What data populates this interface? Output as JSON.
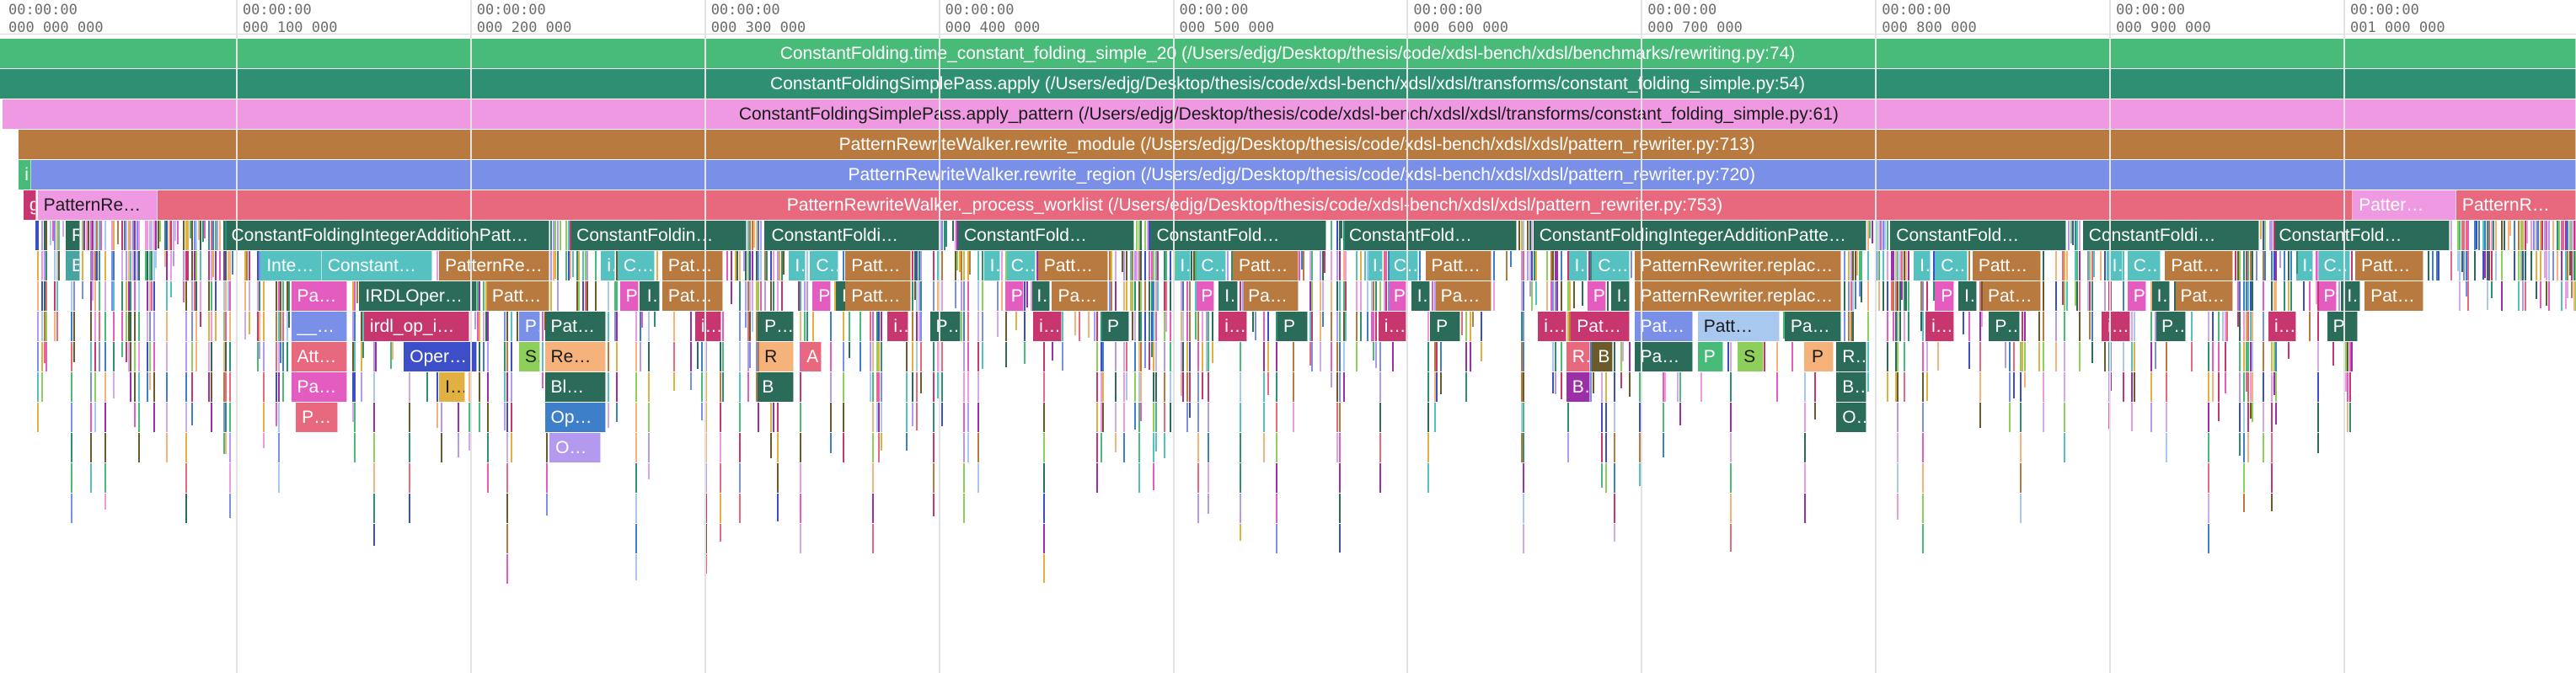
{
  "timeline": {
    "ticks": [
      {
        "time": "00:00:00",
        "count": "000 000 000"
      },
      {
        "time": "00:00:00",
        "count": "000 100 000"
      },
      {
        "time": "00:00:00",
        "count": "000 200 000"
      },
      {
        "time": "00:00:00",
        "count": "000 300 000"
      },
      {
        "time": "00:00:00",
        "count": "000 400 000"
      },
      {
        "time": "00:00:00",
        "count": "000 500 000"
      },
      {
        "time": "00:00:00",
        "count": "000 600 000"
      },
      {
        "time": "00:00:00",
        "count": "000 700 000"
      },
      {
        "time": "00:00:00",
        "count": "000 800 000"
      },
      {
        "time": "00:00:00",
        "count": "000 900 000"
      },
      {
        "time": "00:00:00",
        "count": "001 000 000"
      }
    ]
  },
  "frames": [
    {
      "row": 0,
      "start": 0,
      "end": 1097,
      "label": "ConstantFolding.time_constant_folding_simple_20 (/Users/edjg/Desktop/thesis/code/xdsl-bench/xdsl/benchmarks/rewriting.py:74)",
      "color": "#48bb78",
      "centered": true
    },
    {
      "row": 1,
      "start": 0,
      "end": 1097,
      "label": "ConstantFoldingSimplePass.apply (/Users/edjg/Desktop/thesis/code/xdsl-bench/xdsl/xdsl/transforms/constant_folding_simple.py:54)",
      "color": "#2f8f72",
      "centered": true
    },
    {
      "row": 2,
      "start": 1,
      "end": 1097,
      "label": "ConstantFoldingSimplePass.apply_pattern (/Users/edjg/Desktop/thesis/code/xdsl-bench/xdsl/xdsl/transforms/constant_folding_simple.py:61)",
      "color": "#ee99e1",
      "centered": true,
      "dark": true
    },
    {
      "row": 3,
      "start": 8,
      "end": 1097,
      "label": "PatternRewriteWalker.rewrite_module (/Users/edjg/Desktop/thesis/code/xdsl-bench/xdsl/xdsl/pattern_rewriter.py:713)",
      "color": "#b87a3e",
      "centered": true
    },
    {
      "row": 4,
      "start": 12,
      "end": 1097,
      "label": "PatternRewriteWalker.rewrite_region (/Users/edjg/Desktop/thesis/code/xdsl-bench/xdsl/xdsl/pattern_rewriter.py:720)",
      "color": "#7a8fe8",
      "centered": true
    },
    {
      "row": 4,
      "start": 8,
      "end": 12,
      "label": "i",
      "color": "#48bb78"
    },
    {
      "row": 5,
      "start": 10,
      "end": 14,
      "label": "g",
      "color": "#c7366f"
    },
    {
      "row": 5,
      "start": 16,
      "end": 67,
      "label": "PatternRewr…",
      "color": "#ee99e1",
      "dark": true
    },
    {
      "row": 5,
      "start": 67,
      "end": 1002,
      "label": "PatternRewriteWalker._process_worklist (/Users/edjg/Desktop/thesis/code/xdsl-bench/xdsl/xdsl/pattern_rewriter.py:753)",
      "color": "#e8687e",
      "centered": true
    },
    {
      "row": 5,
      "start": 1002,
      "end": 1046,
      "label": "Patter…",
      "color": "#ee99e1"
    },
    {
      "row": 5,
      "start": 1046,
      "end": 1097,
      "label": "PatternR…",
      "color": "#e8687e"
    },
    {
      "row": 6,
      "start": 28,
      "end": 34,
      "label": "R",
      "color": "#2a6b5a"
    },
    {
      "row": 6,
      "start": 96,
      "end": 234,
      "label": "ConstantFoldingIntegerAdditionPatt…",
      "color": "#2a6b5a"
    },
    {
      "row": 6,
      "start": 243,
      "end": 318,
      "label": "ConstantFoldin…",
      "color": "#2a6b5a"
    },
    {
      "row": 6,
      "start": 326,
      "end": 400,
      "label": "ConstantFoldi…",
      "color": "#2a6b5a"
    },
    {
      "row": 6,
      "start": 408,
      "end": 483,
      "label": "ConstantFold…",
      "color": "#2a6b5a"
    },
    {
      "row": 6,
      "start": 490,
      "end": 565,
      "label": "ConstantFold…",
      "color": "#2a6b5a"
    },
    {
      "row": 6,
      "start": 572,
      "end": 646,
      "label": "ConstantFold…",
      "color": "#2a6b5a"
    },
    {
      "row": 6,
      "start": 653,
      "end": 795,
      "label": "ConstantFoldingIntegerAdditionPatte…",
      "color": "#2a6b5a"
    },
    {
      "row": 6,
      "start": 805,
      "end": 880,
      "label": "ConstantFold…",
      "color": "#2a6b5a"
    },
    {
      "row": 6,
      "start": 887,
      "end": 962,
      "label": "ConstantFoldi…",
      "color": "#2a6b5a"
    },
    {
      "row": 6,
      "start": 968,
      "end": 1043,
      "label": "ConstantFold…",
      "color": "#2a6b5a"
    },
    {
      "row": 7,
      "start": 28,
      "end": 34,
      "label": "B",
      "color": "#4aa3a3"
    },
    {
      "row": 7,
      "start": 111,
      "end": 137,
      "label": "Integ…",
      "color": "#55c1c1"
    },
    {
      "row": 7,
      "start": 137,
      "end": 184,
      "label": "ConstantOp.…",
      "color": "#55c1c1"
    },
    {
      "row": 7,
      "start": 187,
      "end": 234,
      "label": "PatternRe…",
      "color": "#b87a3e"
    },
    {
      "row": 7,
      "start": 256,
      "end": 262,
      "label": "i",
      "color": "#55c1c1"
    },
    {
      "row": 7,
      "start": 263,
      "end": 279,
      "label": "Co…",
      "color": "#55c1c1"
    },
    {
      "row": 7,
      "start": 282,
      "end": 308,
      "label": "Patt…",
      "color": "#b87a3e"
    },
    {
      "row": 7,
      "start": 336,
      "end": 343,
      "label": "I…",
      "color": "#55c1c1"
    },
    {
      "row": 7,
      "start": 345,
      "end": 357,
      "label": "C…",
      "color": "#55c1c1"
    },
    {
      "row": 7,
      "start": 360,
      "end": 388,
      "label": "Patt…",
      "color": "#b87a3e"
    },
    {
      "row": 7,
      "start": 419,
      "end": 426,
      "label": "I",
      "color": "#55c1c1"
    },
    {
      "row": 7,
      "start": 428,
      "end": 441,
      "label": "C…",
      "color": "#55c1c1"
    },
    {
      "row": 7,
      "start": 442,
      "end": 472,
      "label": "Patt…",
      "color": "#b87a3e"
    },
    {
      "row": 7,
      "start": 500,
      "end": 507,
      "label": "I",
      "color": "#55c1c1"
    },
    {
      "row": 7,
      "start": 509,
      "end": 522,
      "label": "C…",
      "color": "#55c1c1"
    },
    {
      "row": 7,
      "start": 525,
      "end": 553,
      "label": "Patt…",
      "color": "#b87a3e"
    },
    {
      "row": 7,
      "start": 582,
      "end": 589,
      "label": "I",
      "color": "#55c1c1"
    },
    {
      "row": 7,
      "start": 591,
      "end": 604,
      "label": "C…",
      "color": "#55c1c1"
    },
    {
      "row": 7,
      "start": 607,
      "end": 635,
      "label": "Patt…",
      "color": "#b87a3e"
    },
    {
      "row": 7,
      "start": 668,
      "end": 676,
      "label": "I…",
      "color": "#55c1c1"
    },
    {
      "row": 7,
      "start": 678,
      "end": 694,
      "label": "C…",
      "color": "#55c1c1"
    },
    {
      "row": 7,
      "start": 696,
      "end": 784,
      "label": "PatternRewriter.replace_ma…",
      "color": "#b87a3e"
    },
    {
      "row": 7,
      "start": 815,
      "end": 822,
      "label": "I…",
      "color": "#55c1c1"
    },
    {
      "row": 7,
      "start": 824,
      "end": 838,
      "label": "C…",
      "color": "#55c1c1"
    },
    {
      "row": 7,
      "start": 840,
      "end": 869,
      "label": "Patt…",
      "color": "#b87a3e"
    },
    {
      "row": 7,
      "start": 897,
      "end": 904,
      "label": "I",
      "color": "#55c1c1"
    },
    {
      "row": 7,
      "start": 906,
      "end": 920,
      "label": "C…",
      "color": "#55c1c1"
    },
    {
      "row": 7,
      "start": 922,
      "end": 951,
      "label": "Patt…",
      "color": "#b87a3e"
    },
    {
      "row": 7,
      "start": 978,
      "end": 985,
      "label": "I",
      "color": "#55c1c1"
    },
    {
      "row": 7,
      "start": 987,
      "end": 1001,
      "label": "C…",
      "color": "#55c1c1"
    },
    {
      "row": 7,
      "start": 1003,
      "end": 1032,
      "label": "Patt…",
      "color": "#b87a3e"
    },
    {
      "row": 8,
      "start": 124,
      "end": 148,
      "label": "Par…",
      "color": "#e45cc0"
    },
    {
      "row": 8,
      "start": 153,
      "end": 203,
      "label": "IRDLOperat…",
      "color": "#2a6b5a"
    },
    {
      "row": 8,
      "start": 207,
      "end": 234,
      "label": "PatternRe…",
      "color": "#b87a3e"
    },
    {
      "row": 8,
      "start": 264,
      "end": 272,
      "label": "P",
      "color": "#e45cc0"
    },
    {
      "row": 8,
      "start": 273,
      "end": 281,
      "label": "I…",
      "color": "#2a6b5a"
    },
    {
      "row": 8,
      "start": 282,
      "end": 308,
      "label": "Patt…",
      "color": "#b87a3e"
    },
    {
      "row": 8,
      "start": 346,
      "end": 354,
      "label": "P",
      "color": "#e45cc0"
    },
    {
      "row": 8,
      "start": 356,
      "end": 364,
      "label": "I",
      "color": "#2a6b5a"
    },
    {
      "row": 8,
      "start": 360,
      "end": 388,
      "label": "Patt…",
      "color": "#b87a3e"
    },
    {
      "row": 8,
      "start": 428,
      "end": 436,
      "label": "P",
      "color": "#e45cc0"
    },
    {
      "row": 8,
      "start": 439,
      "end": 447,
      "label": "I…",
      "color": "#2a6b5a"
    },
    {
      "row": 8,
      "start": 448,
      "end": 472,
      "label": "Patt…",
      "color": "#b87a3e"
    },
    {
      "row": 8,
      "start": 509,
      "end": 517,
      "label": "P",
      "color": "#e45cc0"
    },
    {
      "row": 8,
      "start": 519,
      "end": 527,
      "label": "I…",
      "color": "#2a6b5a"
    },
    {
      "row": 8,
      "start": 529,
      "end": 553,
      "label": "Patt…",
      "color": "#b87a3e"
    },
    {
      "row": 8,
      "start": 591,
      "end": 599,
      "label": "P",
      "color": "#e45cc0"
    },
    {
      "row": 8,
      "start": 601,
      "end": 609,
      "label": "I…",
      "color": "#2a6b5a"
    },
    {
      "row": 8,
      "start": 611,
      "end": 635,
      "label": "Patt…",
      "color": "#b87a3e"
    },
    {
      "row": 8,
      "start": 676,
      "end": 684,
      "label": "P",
      "color": "#e45cc0"
    },
    {
      "row": 8,
      "start": 686,
      "end": 694,
      "label": "I…",
      "color": "#2a6b5a"
    },
    {
      "row": 8,
      "start": 696,
      "end": 784,
      "label": "PatternRewriter.replace_op…",
      "color": "#b87a3e"
    },
    {
      "row": 8,
      "start": 824,
      "end": 832,
      "label": "P",
      "color": "#e45cc0"
    },
    {
      "row": 8,
      "start": 834,
      "end": 842,
      "label": "I…",
      "color": "#2a6b5a"
    },
    {
      "row": 8,
      "start": 844,
      "end": 869,
      "label": "Patt…",
      "color": "#b87a3e"
    },
    {
      "row": 8,
      "start": 906,
      "end": 914,
      "label": "P",
      "color": "#e45cc0"
    },
    {
      "row": 8,
      "start": 916,
      "end": 924,
      "label": "I…",
      "color": "#2a6b5a"
    },
    {
      "row": 8,
      "start": 926,
      "end": 951,
      "label": "Patt…",
      "color": "#b87a3e"
    },
    {
      "row": 8,
      "start": 987,
      "end": 995,
      "label": "P",
      "color": "#e45cc0"
    },
    {
      "row": 8,
      "start": 997,
      "end": 1005,
      "label": "I…",
      "color": "#2a6b5a"
    },
    {
      "row": 8,
      "start": 1007,
      "end": 1032,
      "label": "Patt…",
      "color": "#b87a3e"
    },
    {
      "row": 9,
      "start": 124,
      "end": 148,
      "label": "__c…",
      "color": "#7a8fe8"
    },
    {
      "row": 9,
      "start": 155,
      "end": 200,
      "label": "irdl_op_i…",
      "color": "#c7366f"
    },
    {
      "row": 9,
      "start": 221,
      "end": 230,
      "label": "P",
      "color": "#7a8fe8"
    },
    {
      "row": 9,
      "start": 232,
      "end": 258,
      "label": "Patt…",
      "color": "#2a6b5a"
    },
    {
      "row": 9,
      "start": 296,
      "end": 307,
      "label": "i…",
      "color": "#c7366f"
    },
    {
      "row": 9,
      "start": 323,
      "end": 338,
      "label": "P…",
      "color": "#2a6b5a"
    },
    {
      "row": 9,
      "start": 378,
      "end": 387,
      "label": "i…",
      "color": "#c7366f"
    },
    {
      "row": 9,
      "start": 396,
      "end": 409,
      "label": "P…",
      "color": "#2a6b5a"
    },
    {
      "row": 9,
      "start": 440,
      "end": 452,
      "label": "i…",
      "color": "#c7366f"
    },
    {
      "row": 9,
      "start": 469,
      "end": 481,
      "label": "P",
      "color": "#2a6b5a"
    },
    {
      "row": 9,
      "start": 519,
      "end": 531,
      "label": "i…",
      "color": "#c7366f"
    },
    {
      "row": 9,
      "start": 544,
      "end": 557,
      "label": "P",
      "color": "#2a6b5a"
    },
    {
      "row": 9,
      "start": 587,
      "end": 599,
      "label": "i…",
      "color": "#c7366f"
    },
    {
      "row": 9,
      "start": 609,
      "end": 622,
      "label": "P",
      "color": "#2a6b5a"
    },
    {
      "row": 9,
      "start": 655,
      "end": 667,
      "label": "i…",
      "color": "#c7366f"
    },
    {
      "row": 9,
      "start": 669,
      "end": 694,
      "label": "Patt…",
      "color": "#c7366f"
    },
    {
      "row": 9,
      "start": 696,
      "end": 721,
      "label": "Pat…",
      "color": "#7a8fe8"
    },
    {
      "row": 9,
      "start": 723,
      "end": 758,
      "label": "Patt…",
      "color": "#a8c8f0",
      "dark": true
    },
    {
      "row": 9,
      "start": 760,
      "end": 784,
      "label": "Patt…",
      "color": "#2a6b5a"
    },
    {
      "row": 9,
      "start": 820,
      "end": 832,
      "label": "i…",
      "color": "#c7366f"
    },
    {
      "row": 9,
      "start": 847,
      "end": 860,
      "label": "P…",
      "color": "#2a6b5a"
    },
    {
      "row": 9,
      "start": 895,
      "end": 907,
      "label": "i…",
      "color": "#c7366f"
    },
    {
      "row": 9,
      "start": 918,
      "end": 931,
      "label": "P…",
      "color": "#2a6b5a"
    },
    {
      "row": 9,
      "start": 966,
      "end": 978,
      "label": "i…",
      "color": "#c7366f"
    },
    {
      "row": 9,
      "start": 991,
      "end": 1004,
      "label": "P",
      "color": "#2a6b5a"
    },
    {
      "row": 10,
      "start": 124,
      "end": 148,
      "label": "Att…",
      "color": "#e8687e"
    },
    {
      "row": 10,
      "start": 172,
      "end": 203,
      "label": "Oper…",
      "color": "#3d4fc8"
    },
    {
      "row": 10,
      "start": 221,
      "end": 230,
      "label": "S",
      "color": "#8ccf5a",
      "dark": true
    },
    {
      "row": 10,
      "start": 232,
      "end": 258,
      "label": "Re…",
      "color": "#f5b27a",
      "dark": true
    },
    {
      "row": 10,
      "start": 323,
      "end": 338,
      "label": "R",
      "color": "#f5b27a",
      "dark": true
    },
    {
      "row": 10,
      "start": 341,
      "end": 350,
      "label": "A",
      "color": "#e8687e"
    },
    {
      "row": 10,
      "start": 667,
      "end": 677,
      "label": "R",
      "color": "#e8687e"
    },
    {
      "row": 10,
      "start": 678,
      "end": 687,
      "label": "B",
      "color": "#6b5a2a"
    },
    {
      "row": 10,
      "start": 696,
      "end": 721,
      "label": "Pa…",
      "color": "#2a6b5a"
    },
    {
      "row": 10,
      "start": 723,
      "end": 734,
      "label": "P",
      "color": "#48bb78"
    },
    {
      "row": 10,
      "start": 740,
      "end": 751,
      "label": "S",
      "color": "#8ccf5a",
      "dark": true
    },
    {
      "row": 10,
      "start": 769,
      "end": 781,
      "label": "P",
      "color": "#f5b27a",
      "dark": true
    },
    {
      "row": 10,
      "start": 782,
      "end": 795,
      "label": "R…",
      "color": "#2a6b5a"
    },
    {
      "row": 11,
      "start": 124,
      "end": 148,
      "label": "Pa…",
      "color": "#e45cc0"
    },
    {
      "row": 11,
      "start": 187,
      "end": 198,
      "label": "I…",
      "color": "#e0b040",
      "dark": true
    },
    {
      "row": 11,
      "start": 232,
      "end": 258,
      "label": "Bl…",
      "color": "#2a6b5a"
    },
    {
      "row": 11,
      "start": 322,
      "end": 338,
      "label": "B",
      "color": "#2a6b5a"
    },
    {
      "row": 11,
      "start": 667,
      "end": 677,
      "label": "B",
      "color": "#9a2fa8"
    },
    {
      "row": 11,
      "start": 782,
      "end": 795,
      "label": "B…",
      "color": "#2a6b5a"
    },
    {
      "row": 12,
      "start": 126,
      "end": 144,
      "label": "P…",
      "color": "#e8687e"
    },
    {
      "row": 12,
      "start": 232,
      "end": 258,
      "label": "Op…",
      "color": "#3d7fc8"
    },
    {
      "row": 12,
      "start": 782,
      "end": 795,
      "label": "O…",
      "color": "#2a6b5a"
    },
    {
      "row": 13,
      "start": 234,
      "end": 256,
      "label": "O…",
      "color": "#b49aef"
    }
  ],
  "palette": [
    "#48bb78",
    "#2f8f72",
    "#ee99e1",
    "#b87a3e",
    "#7a8fe8",
    "#e8687e",
    "#2a6b5a",
    "#55c1c1",
    "#e45cc0",
    "#c7366f",
    "#3d4fc8",
    "#8ccf5a",
    "#f5b27a",
    "#e0b040",
    "#9a2fa8",
    "#3d7fc8",
    "#b49aef",
    "#6b5a2a",
    "#a8c8f0",
    "#d4a9e8"
  ]
}
